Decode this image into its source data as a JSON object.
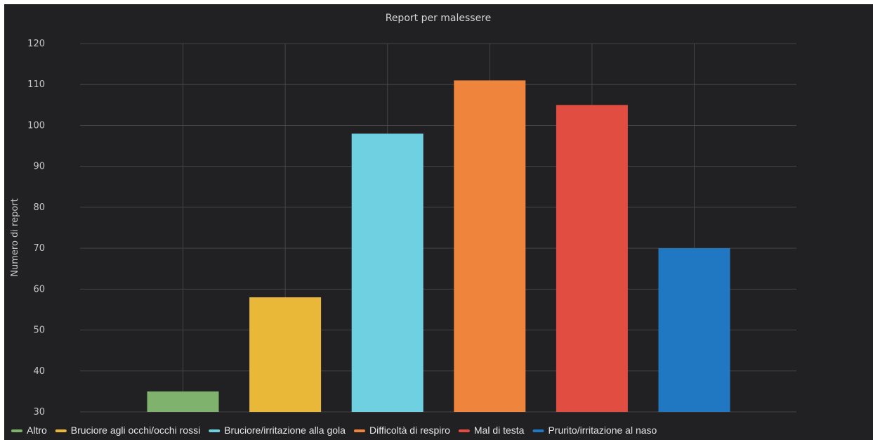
{
  "chart_data": {
    "type": "bar",
    "title": "Report per malessere",
    "xlabel": "",
    "ylabel": "Numero di report",
    "ylim": [
      30,
      120
    ],
    "yticks": [
      30,
      40,
      50,
      60,
      70,
      80,
      90,
      100,
      110,
      120
    ],
    "grid": true,
    "legend_position": "bottom",
    "series": [
      {
        "name": "Altro",
        "value": 35,
        "color": "#7eb26d"
      },
      {
        "name": "Bruciore agli occhi/occhi rossi",
        "value": 58,
        "color": "#eab839"
      },
      {
        "name": "Bruciore/irritazione alla gola",
        "value": 98,
        "color": "#6ed0e0"
      },
      {
        "name": "Difficoltà di respiro",
        "value": 111,
        "color": "#ef843c"
      },
      {
        "name": "Mal di testa",
        "value": 105,
        "color": "#e24d42"
      },
      {
        "name": "Prurito/irritazione al naso",
        "value": 70,
        "color": "#1f78c1"
      }
    ],
    "colors": {
      "background": "#212124",
      "grid": "#444444",
      "text": "#c8c8c8"
    }
  }
}
